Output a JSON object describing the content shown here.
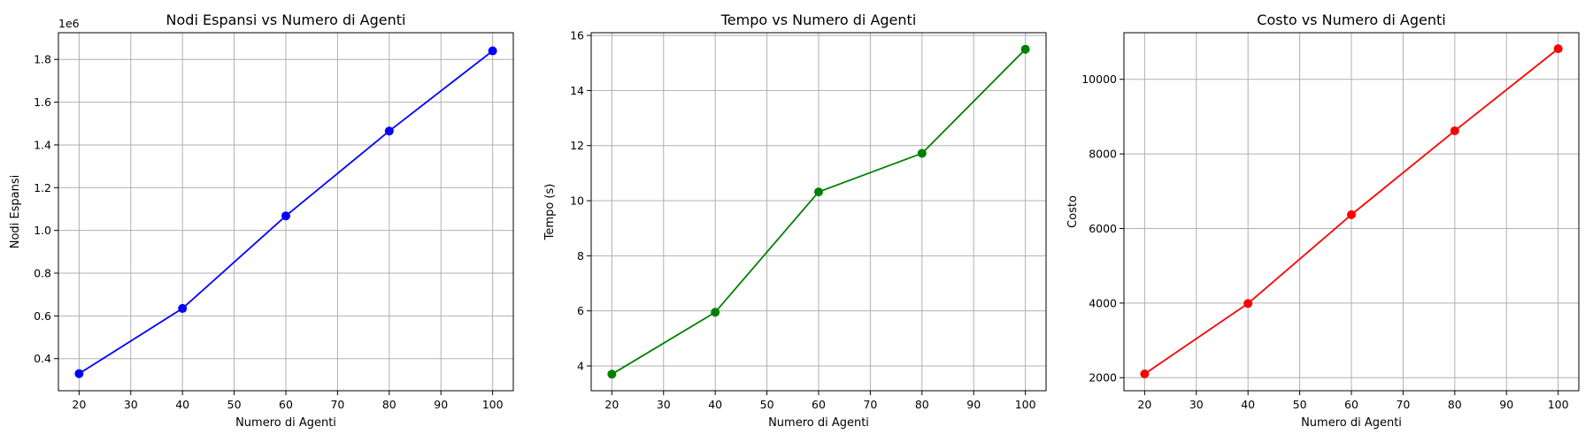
{
  "chart_data": [
    {
      "type": "line",
      "title": "Nodi Espansi vs Numero di Agenti",
      "xlabel": "Numero di Agenti",
      "ylabel": "Nodi Espansi",
      "y_offset_label": "1e6",
      "x": [
        20,
        40,
        60,
        80,
        100
      ],
      "series": [
        {
          "values": [
            330000,
            635000,
            1068000,
            1465000,
            1840000
          ],
          "color": "#0000ff",
          "marker": "circle"
        }
      ],
      "xlim": [
        16,
        104
      ],
      "ylim": [
        250000,
        1925000
      ],
      "xticks": [
        20,
        30,
        40,
        50,
        60,
        70,
        80,
        90,
        100
      ],
      "xtick_labels": [
        "20",
        "30",
        "40",
        "50",
        "60",
        "70",
        "80",
        "90",
        "100"
      ],
      "yticks": [
        400000,
        600000,
        800000,
        1000000,
        1200000,
        1400000,
        1600000,
        1800000
      ],
      "ytick_labels": [
        "0.4",
        "0.6",
        "0.8",
        "1.0",
        "1.2",
        "1.4",
        "1.6",
        "1.8"
      ],
      "grid": true
    },
    {
      "type": "line",
      "title": "Tempo vs Numero di Agenti",
      "xlabel": "Numero di Agenti",
      "ylabel": "Tempo (s)",
      "x": [
        20,
        40,
        60,
        80,
        100
      ],
      "series": [
        {
          "values": [
            3.7,
            5.95,
            10.32,
            11.72,
            15.5
          ],
          "color": "#008000",
          "marker": "circle"
        }
      ],
      "xlim": [
        16,
        104
      ],
      "ylim": [
        3.1,
        16.1
      ],
      "xticks": [
        20,
        30,
        40,
        50,
        60,
        70,
        80,
        90,
        100
      ],
      "xtick_labels": [
        "20",
        "30",
        "40",
        "50",
        "60",
        "70",
        "80",
        "90",
        "100"
      ],
      "yticks": [
        4,
        6,
        8,
        10,
        12,
        14,
        16
      ],
      "ytick_labels": [
        "4",
        "6",
        "8",
        "10",
        "12",
        "14",
        "16"
      ],
      "grid": true
    },
    {
      "type": "line",
      "title": "Costo vs Numero di Agenti",
      "xlabel": "Numero di Agenti",
      "ylabel": "Costo",
      "x": [
        20,
        40,
        60,
        80,
        100
      ],
      "series": [
        {
          "values": [
            2100,
            3990,
            6370,
            8620,
            10820
          ],
          "color": "#ff0000",
          "marker": "circle"
        }
      ],
      "xlim": [
        16,
        104
      ],
      "ylim": [
        1650,
        11250
      ],
      "xticks": [
        20,
        30,
        40,
        50,
        60,
        70,
        80,
        90,
        100
      ],
      "xtick_labels": [
        "20",
        "30",
        "40",
        "50",
        "60",
        "70",
        "80",
        "90",
        "100"
      ],
      "yticks": [
        2000,
        4000,
        6000,
        8000,
        10000
      ],
      "ytick_labels": [
        "2000",
        "4000",
        "6000",
        "8000",
        "10000"
      ],
      "grid": true
    }
  ]
}
